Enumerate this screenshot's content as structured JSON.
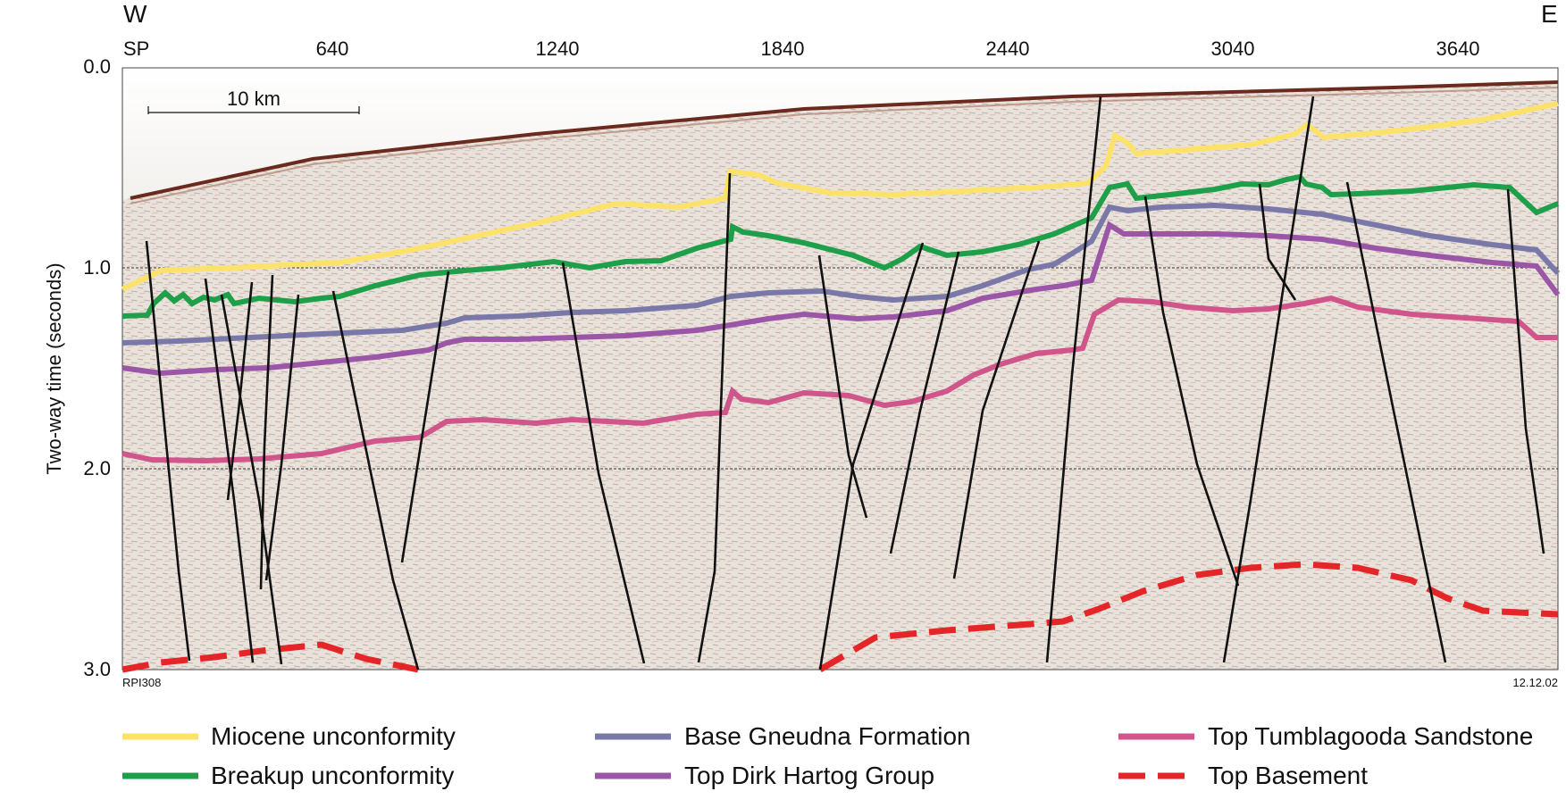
{
  "header": {
    "west_label": "W",
    "east_label": "E"
  },
  "top_axis": {
    "start_label": "SP",
    "ticks": [
      "640",
      "1240",
      "1840",
      "2440",
      "3040",
      "3640"
    ]
  },
  "left_axis": {
    "label": "Two-way time (seconds)",
    "ticks": [
      "0.0",
      "1.0",
      "2.0",
      "3.0"
    ],
    "range": [
      0,
      3
    ],
    "reference_lines_at": [
      1.0,
      2.0
    ]
  },
  "scale_bar": {
    "label": "10 km"
  },
  "footer": {
    "line_id": "RPI308",
    "date": "12.12.02"
  },
  "horizons": [
    {
      "key": "miocene",
      "name": "Miocene unconformity",
      "color": "#fde26a",
      "dashed": false
    },
    {
      "key": "breakup",
      "name": "Breakup unconformity",
      "color": "#1ea04a",
      "dashed": false
    },
    {
      "key": "gneudna",
      "name": "Base Gneudna Formation",
      "color": "#7a78a8",
      "dashed": false
    },
    {
      "key": "dirk",
      "name": "Top Dirk Hartog Group",
      "color": "#9c56a8",
      "dashed": false
    },
    {
      "key": "tumbla",
      "name": "Top Tumblagooda Sandstone",
      "color": "#d0558a",
      "dashed": false
    },
    {
      "key": "basement",
      "name": "Top Basement",
      "color": "#e52629",
      "dashed": true
    }
  ],
  "colors": {
    "fault": "#111111",
    "seabed": "#6b2a1e",
    "seismic_bg": "#e9e3dc"
  }
}
